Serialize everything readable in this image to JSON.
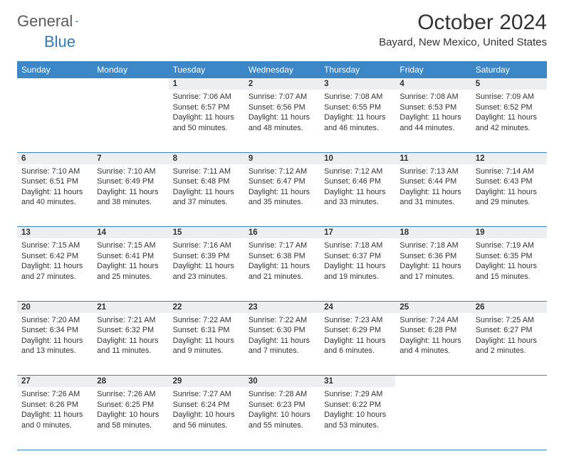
{
  "logo": {
    "part1": "General",
    "part2": "Blue"
  },
  "title": "October 2024",
  "location": "Bayard, New Mexico, United States",
  "header_color": "#3b87c8",
  "daynum_bg": "#eceeef",
  "days": [
    "Sunday",
    "Monday",
    "Tuesday",
    "Wednesday",
    "Thursday",
    "Friday",
    "Saturday"
  ],
  "weeks": [
    {
      "nums": [
        "",
        "",
        "1",
        "2",
        "3",
        "4",
        "5"
      ],
      "cells": [
        "",
        "",
        "Sunrise: 7:06 AM\nSunset: 6:57 PM\nDaylight: 11 hours and 50 minutes.",
        "Sunrise: 7:07 AM\nSunset: 6:56 PM\nDaylight: 11 hours and 48 minutes.",
        "Sunrise: 7:08 AM\nSunset: 6:55 PM\nDaylight: 11 hours and 46 minutes.",
        "Sunrise: 7:08 AM\nSunset: 6:53 PM\nDaylight: 11 hours and 44 minutes.",
        "Sunrise: 7:09 AM\nSunset: 6:52 PM\nDaylight: 11 hours and 42 minutes."
      ]
    },
    {
      "nums": [
        "6",
        "7",
        "8",
        "9",
        "10",
        "11",
        "12"
      ],
      "cells": [
        "Sunrise: 7:10 AM\nSunset: 6:51 PM\nDaylight: 11 hours and 40 minutes.",
        "Sunrise: 7:10 AM\nSunset: 6:49 PM\nDaylight: 11 hours and 38 minutes.",
        "Sunrise: 7:11 AM\nSunset: 6:48 PM\nDaylight: 11 hours and 37 minutes.",
        "Sunrise: 7:12 AM\nSunset: 6:47 PM\nDaylight: 11 hours and 35 minutes.",
        "Sunrise: 7:12 AM\nSunset: 6:46 PM\nDaylight: 11 hours and 33 minutes.",
        "Sunrise: 7:13 AM\nSunset: 6:44 PM\nDaylight: 11 hours and 31 minutes.",
        "Sunrise: 7:14 AM\nSunset: 6:43 PM\nDaylight: 11 hours and 29 minutes."
      ]
    },
    {
      "nums": [
        "13",
        "14",
        "15",
        "16",
        "17",
        "18",
        "19"
      ],
      "cells": [
        "Sunrise: 7:15 AM\nSunset: 6:42 PM\nDaylight: 11 hours and 27 minutes.",
        "Sunrise: 7:15 AM\nSunset: 6:41 PM\nDaylight: 11 hours and 25 minutes.",
        "Sunrise: 7:16 AM\nSunset: 6:39 PM\nDaylight: 11 hours and 23 minutes.",
        "Sunrise: 7:17 AM\nSunset: 6:38 PM\nDaylight: 11 hours and 21 minutes.",
        "Sunrise: 7:18 AM\nSunset: 6:37 PM\nDaylight: 11 hours and 19 minutes.",
        "Sunrise: 7:18 AM\nSunset: 6:36 PM\nDaylight: 11 hours and 17 minutes.",
        "Sunrise: 7:19 AM\nSunset: 6:35 PM\nDaylight: 11 hours and 15 minutes."
      ]
    },
    {
      "nums": [
        "20",
        "21",
        "22",
        "23",
        "24",
        "25",
        "26"
      ],
      "cells": [
        "Sunrise: 7:20 AM\nSunset: 6:34 PM\nDaylight: 11 hours and 13 minutes.",
        "Sunrise: 7:21 AM\nSunset: 6:32 PM\nDaylight: 11 hours and 11 minutes.",
        "Sunrise: 7:22 AM\nSunset: 6:31 PM\nDaylight: 11 hours and 9 minutes.",
        "Sunrise: 7:22 AM\nSunset: 6:30 PM\nDaylight: 11 hours and 7 minutes.",
        "Sunrise: 7:23 AM\nSunset: 6:29 PM\nDaylight: 11 hours and 6 minutes.",
        "Sunrise: 7:24 AM\nSunset: 6:28 PM\nDaylight: 11 hours and 4 minutes.",
        "Sunrise: 7:25 AM\nSunset: 6:27 PM\nDaylight: 11 hours and 2 minutes."
      ]
    },
    {
      "nums": [
        "27",
        "28",
        "29",
        "30",
        "31",
        "",
        ""
      ],
      "cells": [
        "Sunrise: 7:26 AM\nSunset: 6:26 PM\nDaylight: 11 hours and 0 minutes.",
        "Sunrise: 7:26 AM\nSunset: 6:25 PM\nDaylight: 10 hours and 58 minutes.",
        "Sunrise: 7:27 AM\nSunset: 6:24 PM\nDaylight: 10 hours and 56 minutes.",
        "Sunrise: 7:28 AM\nSunset: 6:23 PM\nDaylight: 10 hours and 55 minutes.",
        "Sunrise: 7:29 AM\nSunset: 6:22 PM\nDaylight: 10 hours and 53 minutes.",
        "",
        ""
      ]
    }
  ]
}
